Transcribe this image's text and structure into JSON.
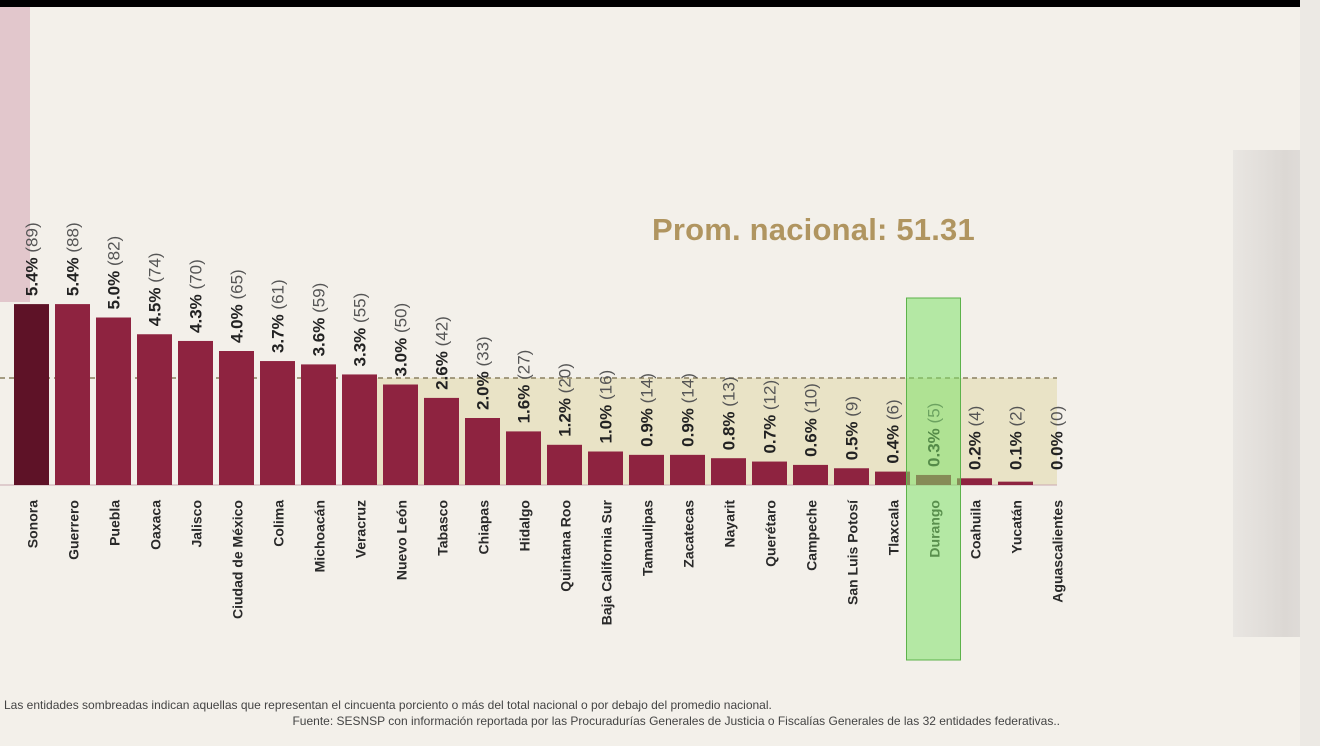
{
  "chart_data": {
    "type": "bar",
    "title": "Prom. nacional: 51.31",
    "xlabel": "",
    "ylabel": "",
    "ylim": [
      0,
      5.6
    ],
    "average_line": 51.31,
    "highlight": "Durango",
    "shading": "above-average region shaded",
    "categories": [
      "Sonora",
      "Guerrero",
      "Puebla",
      "Oaxaca",
      "Jalisco",
      "Ciudad de México",
      "Colima",
      "Michoacán",
      "Veracruz",
      "Nuevo León",
      "Tabasco",
      "Chiapas",
      "Hidalgo",
      "Quintana Roo",
      "Baja California Sur",
      "Tamaulipas",
      "Zacatecas",
      "Nayarit",
      "Querétaro",
      "Campeche",
      "San Luis Potosí",
      "Tlaxcala",
      "Durango",
      "Coahuila",
      "Yucatán",
      "Aguascalientes"
    ],
    "values": [
      5.4,
      5.4,
      5.0,
      4.5,
      4.3,
      4.0,
      3.7,
      3.6,
      3.3,
      3.0,
      2.6,
      2.0,
      1.6,
      1.2,
      1.0,
      0.9,
      0.9,
      0.8,
      0.7,
      0.6,
      0.5,
      0.4,
      0.3,
      0.2,
      0.1,
      0.0
    ],
    "value_labels": [
      "5.4%",
      "5.4%",
      "5.0%",
      "4.5%",
      "4.3%",
      "4.0%",
      "3.7%",
      "3.6%",
      "3.3%",
      "3.0%",
      "2.6%",
      "2.0%",
      "1.6%",
      "1.2%",
      "1.0%",
      "0.9%",
      "0.9%",
      "0.8%",
      "0.7%",
      "0.6%",
      "0.5%",
      "0.4%",
      "0.3%",
      "0.2%",
      "0.1%",
      "0.0%"
    ],
    "counts": [
      "(89)",
      "(88)",
      "(82)",
      "(74)",
      "(70)",
      "(65)",
      "(61)",
      "(59)",
      "(55)",
      "(50)",
      "(42)",
      "(33)",
      "(27)",
      "(20)",
      "(16)",
      "(14)",
      "(14)",
      "(13)",
      "(12)",
      "(10)",
      "(9)",
      "(6)",
      "(5)",
      "(4)",
      "(2)",
      "(0)"
    ]
  },
  "colors": {
    "bar": "#8e2340",
    "bar_first": "#5e1227",
    "highlight": "#7fe26a",
    "shade": "#e9e3c6",
    "avg_title": "#b09560"
  },
  "footnotes": {
    "line1": "Las entidades sombreadas indican aquellas que representan el cincuenta porciento o más del total nacional o por debajo del promedio nacional.",
    "line2": "Fuente: SESNSP con información reportada por las Procuradurías Generales de Justicia o Fiscalías Generales de las 32 entidades federativas.."
  }
}
